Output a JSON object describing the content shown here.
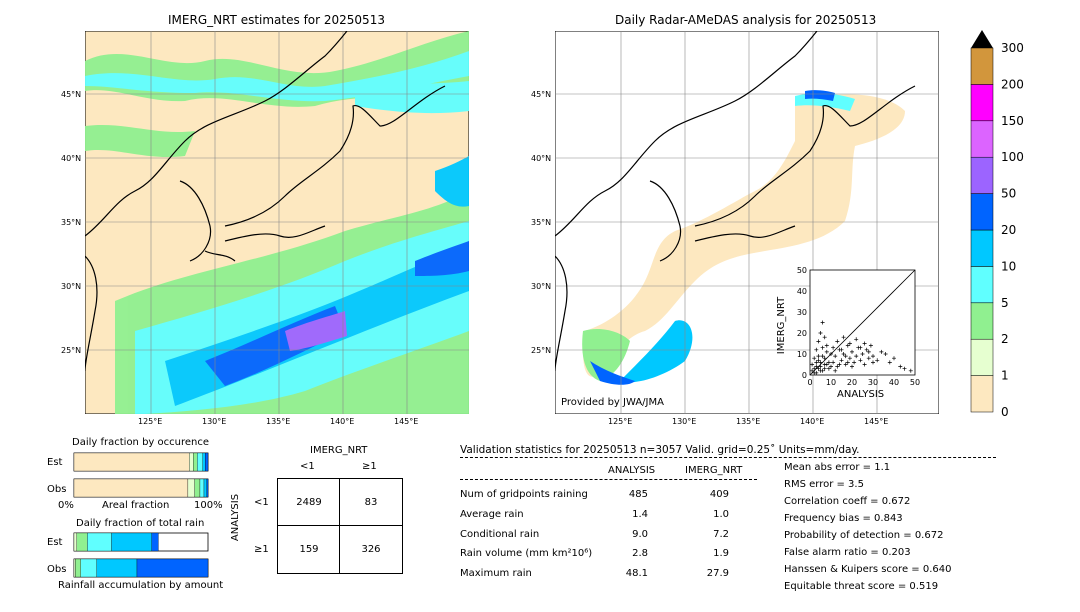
{
  "left_map": {
    "title": "IMERG_NRT estimates for 20250513",
    "lat_labels": [
      "45°N",
      "40°N",
      "35°N",
      "30°N",
      "25°N"
    ],
    "lon_labels": [
      "125°E",
      "130°E",
      "135°E",
      "140°E",
      "145°E"
    ]
  },
  "right_map": {
    "title": "Daily Radar-AMeDAS analysis for 20250513",
    "lat_labels": [
      "45°N",
      "40°N",
      "35°N",
      "30°N",
      "25°N"
    ],
    "lon_labels": [
      "125°E",
      "130°E",
      "135°E",
      "140°E",
      "145°E"
    ],
    "credit": "Provided by JWA/JMA"
  },
  "colorbar": {
    "levels": [
      "0",
      "1",
      "2",
      "5",
      "10",
      "20",
      "50",
      "100",
      "150",
      "200",
      "300"
    ],
    "colors": [
      "#fde8c0",
      "#e6ffd0",
      "#90f090",
      "#60ffff",
      "#00c8ff",
      "#0064ff",
      "#9c64ff",
      "#dc64ff",
      "#ff00ff",
      "#d2963c"
    ],
    "extend_color": "#000000"
  },
  "occurrence": {
    "title": "Daily fraction by occurence",
    "row_est": "Est",
    "row_obs": "Obs",
    "xlabel_left": "0%",
    "xlabel_mid": "Areal fraction",
    "xlabel_right": "100%",
    "est_fractions": [
      0.86,
      0.03,
      0.03,
      0.04,
      0.02,
      0.02
    ],
    "obs_fractions": [
      0.85,
      0.05,
      0.04,
      0.03,
      0.02,
      0.01
    ]
  },
  "accumulation": {
    "title": "Daily fraction of total rain",
    "row_est": "Est",
    "row_obs": "Obs",
    "xlabel": "Rainfall accumulation by amount",
    "est_fractions": [
      0.02,
      0.08,
      0.18,
      0.3,
      0.05
    ],
    "obs_fractions": [
      0.01,
      0.04,
      0.12,
      0.3,
      0.53
    ]
  },
  "contingency": {
    "title": "IMERG_NRT",
    "col_lt1": "<1",
    "col_ge1": "≥1",
    "row_axis": "ANALYSIS",
    "row_lt1": "<1",
    "row_ge1": "≥1",
    "values": [
      [
        "2489",
        "83"
      ],
      [
        "159",
        "326"
      ]
    ]
  },
  "validation": {
    "header": "Validation statistics for 20250513  n=3057 Valid. grid=0.25˚ Units=mm/day.",
    "col_analysis": "ANALYSIS",
    "col_imerg": "IMERG_NRT",
    "rows": [
      {
        "label": "Num of gridpoints raining",
        "analysis": "485",
        "imerg": "409"
      },
      {
        "label": "Average rain",
        "analysis": "1.4",
        "imerg": "1.0"
      },
      {
        "label": "Conditional rain",
        "analysis": "9.0",
        "imerg": "7.2"
      },
      {
        "label": "Rain volume (mm km²10⁶)",
        "analysis": "2.8",
        "imerg": "1.9"
      },
      {
        "label": "Maximum rain",
        "analysis": "48.1",
        "imerg": "27.9"
      }
    ],
    "scores": [
      "Mean abs error =    1.1",
      "RMS error =    3.5",
      "Correlation coeff =  0.672",
      "Frequency bias =  0.843",
      "Probability of detection =  0.672",
      "False alarm ratio =  0.203",
      "Hanssen & Kuipers score =  0.640",
      "Equitable threat score =  0.519"
    ]
  },
  "chart_data": {
    "type": "scatter",
    "xlabel": "ANALYSIS",
    "ylabel": "IMERG_NRT",
    "xlim": [
      0,
      50
    ],
    "ylim": [
      0,
      50
    ],
    "xticks": [
      "0",
      "10",
      "20",
      "30",
      "40",
      "50"
    ],
    "yticks": [
      "0",
      "10",
      "20",
      "30",
      "40",
      "50"
    ],
    "points": [
      [
        1,
        2
      ],
      [
        2,
        1
      ],
      [
        3,
        4
      ],
      [
        4,
        3
      ],
      [
        5,
        6
      ],
      [
        6,
        2
      ],
      [
        7,
        8
      ],
      [
        8,
        5
      ],
      [
        9,
        3
      ],
      [
        10,
        10
      ],
      [
        11,
        6
      ],
      [
        12,
        9
      ],
      [
        13,
        4
      ],
      [
        14,
        12
      ],
      [
        15,
        7
      ],
      [
        16,
        10
      ],
      [
        17,
        5
      ],
      [
        18,
        14
      ],
      [
        19,
        8
      ],
      [
        20,
        11
      ],
      [
        21,
        6
      ],
      [
        22,
        9
      ],
      [
        23,
        13
      ],
      [
        24,
        7
      ],
      [
        25,
        10
      ],
      [
        26,
        5
      ],
      [
        27,
        12
      ],
      [
        28,
        8
      ],
      [
        29,
        14
      ],
      [
        30,
        9
      ],
      [
        32,
        7
      ],
      [
        34,
        11
      ],
      [
        36,
        10
      ],
      [
        38,
        6
      ],
      [
        40,
        8
      ],
      [
        43,
        4
      ],
      [
        45,
        3
      ],
      [
        48,
        2
      ],
      [
        2,
        8
      ],
      [
        3,
        12
      ],
      [
        4,
        16
      ],
      [
        5,
        20
      ],
      [
        6,
        25
      ],
      [
        7,
        18
      ],
      [
        8,
        14
      ],
      [
        1,
        5
      ],
      [
        2,
        3
      ],
      [
        3,
        1
      ],
      [
        4,
        7
      ],
      [
        5,
        2
      ],
      [
        6,
        9
      ],
      [
        7,
        3
      ],
      [
        8,
        11
      ],
      [
        9,
        6
      ],
      [
        10,
        4
      ],
      [
        11,
        13
      ],
      [
        12,
        2
      ],
      [
        13,
        16
      ],
      [
        14,
        5
      ],
      [
        15,
        12
      ],
      [
        16,
        18
      ],
      [
        17,
        9
      ],
      [
        18,
        6
      ],
      [
        19,
        15
      ],
      [
        20,
        4
      ],
      [
        22,
        17
      ],
      [
        24,
        13
      ],
      [
        26,
        15
      ],
      [
        28,
        11
      ],
      [
        30,
        6
      ],
      [
        3,
        6
      ],
      [
        4,
        9
      ],
      [
        5,
        4
      ],
      [
        6,
        13
      ],
      [
        7,
        5
      ]
    ]
  }
}
